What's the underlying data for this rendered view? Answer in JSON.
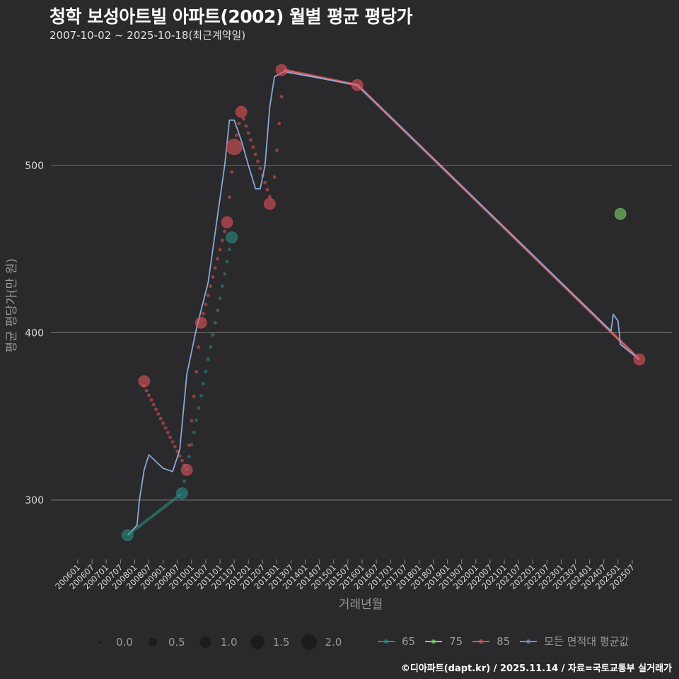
{
  "header": {
    "title": "청학 보성아트빌 아파트(2002) 월별 평균 평당가",
    "subtitle": "2007-10-02 ~ 2025-10-18(최근계약일)"
  },
  "axes": {
    "ylabel": "평균 평당가(만 원)",
    "xlabel": "거래년월"
  },
  "legend": {
    "size_items": [
      {
        "label": "0.0",
        "r": 2
      },
      {
        "label": "0.5",
        "r": 6
      },
      {
        "label": "1.0",
        "r": 8
      },
      {
        "label": "1.5",
        "r": 10
      },
      {
        "label": "2.0",
        "r": 11
      }
    ],
    "color_items": [
      {
        "label": "65",
        "color": "#2a8f85"
      },
      {
        "label": "75",
        "color": "#7fd36b"
      },
      {
        "label": "85",
        "color": "#e0535a"
      },
      {
        "label": "모든 면적대 평균값",
        "color": "#6f93bf"
      }
    ]
  },
  "footer": "©디아파트(dapt.kr) / 2025.11.14 / 자료=국토교통부 실거래가",
  "chart_data": {
    "type": "line",
    "title": "청학 보성아트빌 아파트(2002) 월별 평균 평당가",
    "subtitle": "2007-10-02 ~ 2025-10-18(최근계약일)",
    "xlabel": "거래년월",
    "ylabel": "평균 평당가(만 원)",
    "ylim": [
      260,
      575
    ],
    "yticks": [
      300,
      400,
      500
    ],
    "grid": true,
    "legend_position": "bottom",
    "x_ticks": [
      "200601",
      "200607",
      "200701",
      "200707",
      "200801",
      "200807",
      "200901",
      "200907",
      "201001",
      "201007",
      "201101",
      "201107",
      "201201",
      "201207",
      "201301",
      "201307",
      "201401",
      "201407",
      "201501",
      "201507",
      "201601",
      "201607",
      "201701",
      "201707",
      "201801",
      "201807",
      "201901",
      "201907",
      "202001",
      "202007",
      "202101",
      "202107",
      "202201",
      "202207",
      "202301",
      "202307",
      "202401",
      "202407",
      "202501",
      "202507"
    ],
    "series": [
      {
        "name": "65",
        "color": "#2a8f85",
        "points": [
          {
            "x": "200710",
            "y": 279,
            "size": 1.0
          },
          {
            "x": "200909",
            "y": 304,
            "size": 1.0
          },
          {
            "x": "201106",
            "y": 457,
            "size": 1.0
          }
        ]
      },
      {
        "name": "75",
        "color": "#7fd36b",
        "points": [
          {
            "x": "202502",
            "y": 471,
            "size": 1.0
          }
        ]
      },
      {
        "name": "85",
        "color": "#e0535a",
        "points": [
          {
            "x": "200805",
            "y": 371,
            "size": 1.0
          },
          {
            "x": "200911",
            "y": 318,
            "size": 1.0
          },
          {
            "x": "201005",
            "y": 406,
            "size": 1.0
          },
          {
            "x": "201104",
            "y": 466,
            "size": 1.0
          },
          {
            "x": "201107",
            "y": 511,
            "size": 1.5
          },
          {
            "x": "201114",
            "y": 532,
            "size": 1.0
          },
          {
            "x": "201210",
            "y": 477,
            "size": 1.0
          },
          {
            "x": "201303",
            "y": 557,
            "size": 1.0
          },
          {
            "x": "201511",
            "y": 548,
            "size": 1.0
          },
          {
            "x": "202510",
            "y": 384,
            "size": 1.0
          }
        ]
      }
    ],
    "average_line": {
      "name": "모든 면적대 평균값",
      "color": "#8aa8d6",
      "points": [
        [
          21,
          279
        ],
        [
          25,
          285
        ],
        [
          26,
          300
        ],
        [
          28,
          318
        ],
        [
          30,
          327
        ],
        [
          33,
          323
        ],
        [
          36,
          319
        ],
        [
          40,
          317
        ],
        [
          43,
          330
        ],
        [
          46,
          375
        ],
        [
          50,
          402
        ],
        [
          55,
          430
        ],
        [
          59,
          470
        ],
        [
          62,
          500
        ],
        [
          64,
          527
        ],
        [
          66,
          527
        ],
        [
          69,
          515
        ],
        [
          72,
          500
        ],
        [
          75,
          486
        ],
        [
          77,
          486
        ],
        [
          79,
          500
        ],
        [
          81,
          535
        ],
        [
          83,
          553
        ],
        [
          87,
          556
        ],
        [
          118,
          548
        ],
        [
          225,
          401
        ],
        [
          226,
          411
        ],
        [
          228,
          407
        ],
        [
          229,
          393
        ],
        [
          237,
          384
        ]
      ]
    },
    "segments_85": [
      [
        [
          27,
          371
        ],
        [
          46,
          318
        ]
      ],
      [
        [
          46,
          318
        ],
        [
          52,
          406
        ],
        [
          63,
          466
        ],
        [
          66,
          511
        ],
        [
          69,
          532
        ],
        [
          82,
          477
        ],
        [
          87,
          557
        ]
      ],
      [
        [
          87,
          557
        ],
        [
          118,
          548
        ],
        [
          237,
          384
        ]
      ]
    ],
    "segments_65": [
      [
        [
          21,
          279
        ],
        [
          44,
          304
        ]
      ],
      [
        [
          44,
          304
        ],
        [
          65,
          457
        ]
      ]
    ]
  }
}
